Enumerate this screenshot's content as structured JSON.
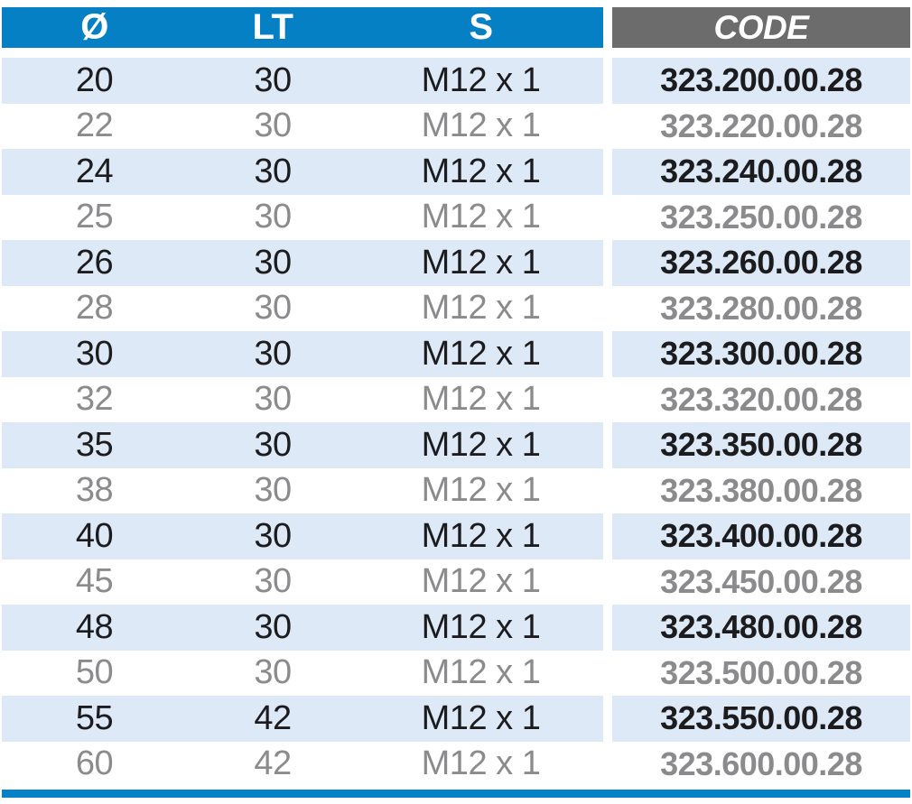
{
  "table": {
    "columns": [
      {
        "key": "diameter",
        "label": "Ø"
      },
      {
        "key": "lt",
        "label": "LT"
      },
      {
        "key": "s",
        "label": "S"
      },
      {
        "key": "code",
        "label": "CODE"
      }
    ],
    "rows": [
      [
        "20",
        "30",
        "M12 x 1",
        "323.200.00.28"
      ],
      [
        "22",
        "30",
        "M12 x 1",
        "323.220.00.28"
      ],
      [
        "24",
        "30",
        "M12 x 1",
        "323.240.00.28"
      ],
      [
        "25",
        "30",
        "M12 x 1",
        "323.250.00.28"
      ],
      [
        "26",
        "30",
        "M12 x 1",
        "323.260.00.28"
      ],
      [
        "28",
        "30",
        "M12 x 1",
        "323.280.00.28"
      ],
      [
        "30",
        "30",
        "M12 x 1",
        "323.300.00.28"
      ],
      [
        "32",
        "30",
        "M12 x 1",
        "323.320.00.28"
      ],
      [
        "35",
        "30",
        "M12 x 1",
        "323.350.00.28"
      ],
      [
        "38",
        "30",
        "M12 x 1",
        "323.380.00.28"
      ],
      [
        "40",
        "30",
        "M12 x 1",
        "323.400.00.28"
      ],
      [
        "45",
        "30",
        "M12 x 1",
        "323.450.00.28"
      ],
      [
        "48",
        "30",
        "M12 x 1",
        "323.480.00.28"
      ],
      [
        "50",
        "30",
        "M12 x 1",
        "323.500.00.28"
      ],
      [
        "55",
        "42",
        "M12 x 1",
        "323.550.00.28"
      ],
      [
        "60",
        "42",
        "M12 x 1",
        "323.600.00.28"
      ]
    ]
  },
  "colors": {
    "header_blue": "#0580c4",
    "header_gray": "#6c6c6c",
    "row_light_blue": "#dde9f6",
    "row_white": "#ffffff",
    "text_dark": "#1c1c1e",
    "text_gray": "#8b8b8d",
    "footer_bar_blue": "#0882c6"
  }
}
